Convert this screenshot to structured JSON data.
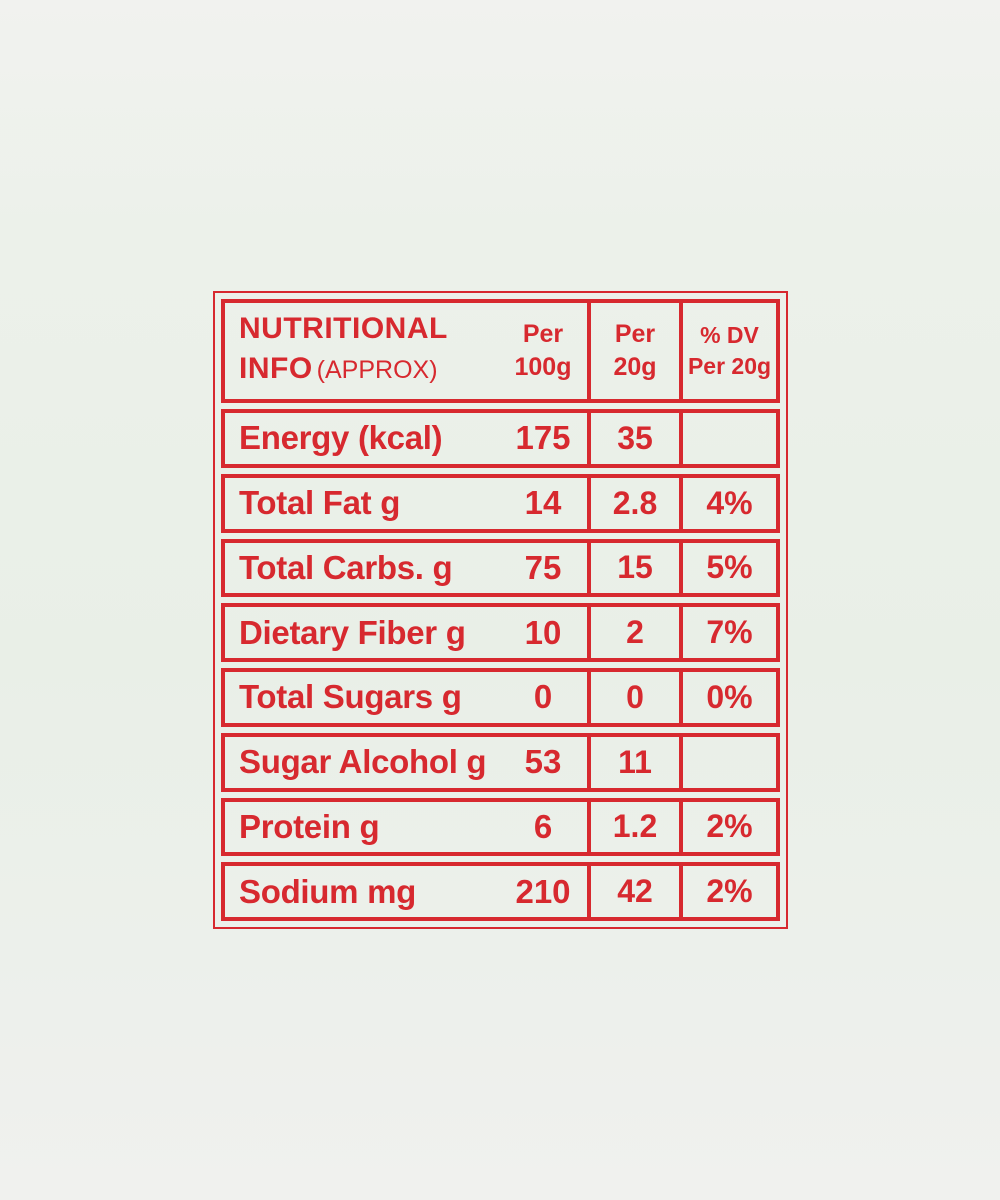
{
  "colors": {
    "accent": "#d7292f",
    "bg": "#edf1ec"
  },
  "table": {
    "header": {
      "title_line1": "NUTRITIONAL",
      "title_line2": "INFO",
      "title_suffix": "(APPROX)",
      "per100g": {
        "line1": "Per",
        "line2": "100g"
      },
      "per20g": {
        "line1": "Per",
        "line2": "20g"
      },
      "dv": {
        "line1": "% DV",
        "line2": "Per 20g"
      }
    },
    "rows": [
      {
        "label": "Energy (kcal)",
        "per100g": "175",
        "per20g": "35",
        "dv": ""
      },
      {
        "label": "Total Fat g",
        "per100g": "14",
        "per20g": "2.8",
        "dv": "4%"
      },
      {
        "label": "Total Carbs. g",
        "per100g": "75",
        "per20g": "15",
        "dv": "5%"
      },
      {
        "label": "Dietary Fiber g",
        "per100g": "10",
        "per20g": "2",
        "dv": "7%"
      },
      {
        "label": "Total Sugars g",
        "per100g": "0",
        "per20g": "0",
        "dv": "0%"
      },
      {
        "label": "Sugar Alcohol g",
        "per100g": "53",
        "per20g": "11",
        "dv": ""
      },
      {
        "label": "Protein g",
        "per100g": "6",
        "per20g": "1.2",
        "dv": "2%"
      },
      {
        "label": "Sodium mg",
        "per100g": "210",
        "per20g": "42",
        "dv": "2%"
      }
    ]
  }
}
